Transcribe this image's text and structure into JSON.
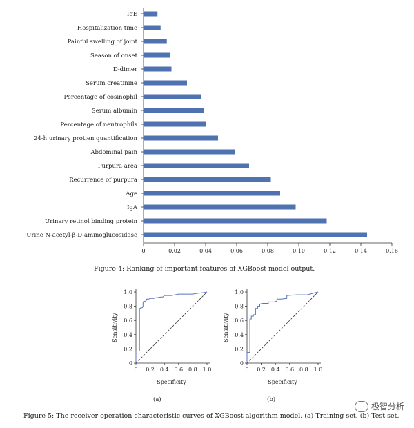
{
  "chart_data": [
    {
      "type": "bar",
      "orientation": "horizontal",
      "categories": [
        "IgE",
        "Hospitalization time",
        "Painful swelling of joint",
        "Season of onset",
        "D-dimer",
        "Serum creatinine",
        "Percentage of eosinophil",
        "Serum albumin",
        "Percentage of neutrophils",
        "24-h urinary protien quantification",
        "Abdominal pain",
        "Purpura area",
        "Recurrence of purpura",
        "Age",
        "IgA",
        "Urinary retinol binding protein",
        "Urine N-acetyl-β-D-aminoglucosidase"
      ],
      "values": [
        0.009,
        0.011,
        0.015,
        0.017,
        0.018,
        0.028,
        0.037,
        0.039,
        0.04,
        0.048,
        0.059,
        0.068,
        0.082,
        0.088,
        0.098,
        0.118,
        0.144
      ],
      "xlim": [
        0,
        0.16
      ],
      "xticks": [
        "0",
        "0.02",
        "0.04",
        "0.06",
        "0.08",
        "0.10",
        "0.12",
        "0.14",
        "0.16"
      ],
      "xtick_values": [
        0,
        0.02,
        0.04,
        0.06,
        0.08,
        0.1,
        0.12,
        0.14,
        0.16
      ],
      "bar_color": "#4f72b0",
      "title": "",
      "xlabel": "",
      "ylabel": ""
    },
    {
      "type": "line",
      "panel": "(a)",
      "xlabel": "Specificity",
      "ylabel": "Sensitivity",
      "xlim": [
        0,
        1
      ],
      "ylim": [
        0,
        1
      ],
      "xticks": [
        "0",
        "0.2",
        "0.4",
        "0.6",
        "0.8",
        "1.0"
      ],
      "yticks": [
        "0",
        "0.2",
        "0.4",
        "0.6",
        "0.8",
        "1.0"
      ],
      "roc_x": [
        0,
        0,
        0.05,
        0.05,
        0.06,
        0.07,
        0.09,
        0.1,
        0.1,
        0.11,
        0.14,
        0.15,
        0.15,
        0.18,
        0.2,
        0.25,
        0.28,
        0.3,
        0.35,
        0.38,
        0.4,
        0.5,
        0.55,
        0.6,
        0.8,
        0.85,
        0.95,
        1.0
      ],
      "roc_y": [
        0,
        0.17,
        0.17,
        0.77,
        0.77,
        0.78,
        0.78,
        0.8,
        0.85,
        0.87,
        0.87,
        0.89,
        0.9,
        0.9,
        0.91,
        0.91,
        0.92,
        0.92,
        0.93,
        0.93,
        0.95,
        0.95,
        0.96,
        0.97,
        0.97,
        0.98,
        0.99,
        1.0
      ],
      "series_color": "#5b72c2"
    },
    {
      "type": "line",
      "panel": "(b)",
      "xlabel": "Specificity",
      "ylabel": "Sensitivity",
      "xlim": [
        0,
        1
      ],
      "ylim": [
        0,
        1
      ],
      "xticks": [
        "0",
        "0.2",
        "0.4",
        "0.6",
        "0.8",
        "1.0"
      ],
      "yticks": [
        "0",
        "0.2",
        "0.4",
        "0.6",
        "0.8",
        "1.0"
      ],
      "roc_x": [
        0,
        0,
        0.04,
        0.04,
        0.06,
        0.06,
        0.09,
        0.09,
        0.12,
        0.12,
        0.15,
        0.15,
        0.18,
        0.18,
        0.22,
        0.3,
        0.3,
        0.38,
        0.42,
        0.42,
        0.48,
        0.56,
        0.56,
        0.7,
        0.85,
        0.92,
        1.0
      ],
      "roc_y": [
        0,
        0.15,
        0.15,
        0.62,
        0.62,
        0.66,
        0.66,
        0.68,
        0.68,
        0.77,
        0.77,
        0.8,
        0.8,
        0.83,
        0.84,
        0.84,
        0.86,
        0.86,
        0.87,
        0.9,
        0.9,
        0.91,
        0.95,
        0.96,
        0.96,
        0.98,
        1.0
      ],
      "series_color": "#5b72c2"
    }
  ],
  "captions": {
    "figure4": "Figure 4: Ranking of important features of XGBoost model output.",
    "figure5": "Figure 5: The receiver operation characteristic curves of XGBoost algorithm model. (a) Training set. (b) Test set.",
    "panel_a": "(a)",
    "panel_b": "(b)"
  },
  "watermark": "极智分析"
}
